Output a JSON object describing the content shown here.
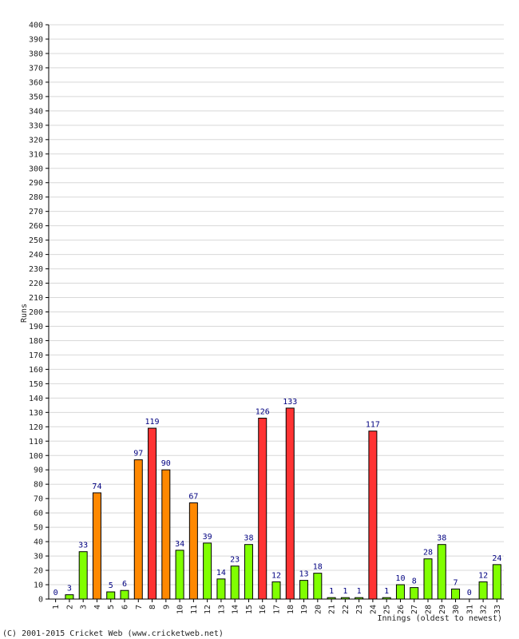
{
  "chart_data": {
    "type": "bar",
    "ylabel": "Runs",
    "xlabel": "Innings (oldest to newest)",
    "ylim": [
      0,
      400
    ],
    "ytick_step": 10,
    "grid": true,
    "categories": [
      "1",
      "2",
      "3",
      "4",
      "5",
      "6",
      "7",
      "8",
      "9",
      "10",
      "11",
      "12",
      "13",
      "14",
      "15",
      "16",
      "17",
      "18",
      "19",
      "20",
      "21",
      "22",
      "23",
      "24",
      "25",
      "26",
      "27",
      "28",
      "29",
      "30",
      "31",
      "32",
      "33"
    ],
    "values": [
      0,
      3,
      33,
      74,
      5,
      6,
      97,
      119,
      90,
      34,
      67,
      39,
      14,
      23,
      38,
      126,
      12,
      133,
      13,
      18,
      1,
      1,
      1,
      117,
      1,
      10,
      8,
      28,
      38,
      7,
      0,
      12,
      24
    ],
    "colors": {
      "low": "#80ff00",
      "fifty": "#ff8800",
      "hundred": "#ff3333",
      "value_label": "#000080",
      "grid": "#d8d8d8",
      "axis": "#000000"
    }
  },
  "footer": {
    "copyright": "(C) 2001-2015 Cricket Web (www.cricketweb.net)"
  }
}
